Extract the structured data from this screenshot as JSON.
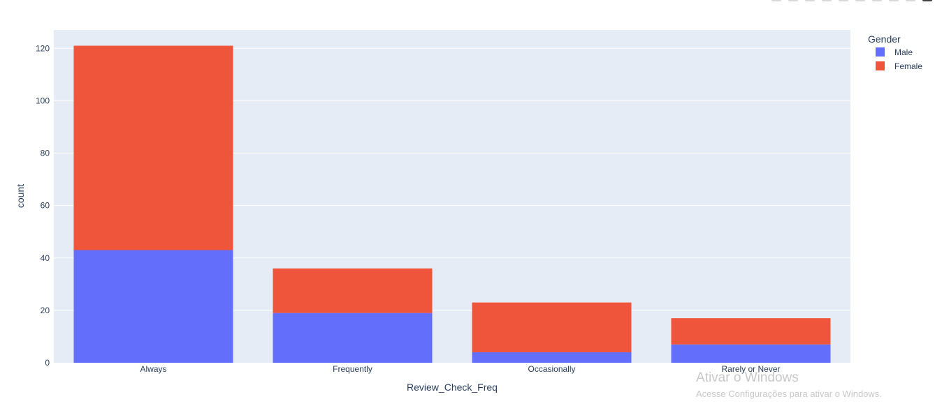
{
  "chart_data": {
    "type": "bar",
    "barmode": "stack",
    "categories": [
      "Always",
      "Frequently",
      "Occasionally",
      "Rarely or Never"
    ],
    "series": [
      {
        "name": "Male",
        "values": [
          43,
          19,
          4,
          7
        ],
        "color": "#636efa"
      },
      {
        "name": "Female",
        "values": [
          78,
          17,
          19,
          10
        ],
        "color": "#ef553b"
      }
    ],
    "xlabel": "Review_Check_Freq",
    "ylabel": "count",
    "ylim": [
      0,
      127
    ],
    "yticks": [
      0,
      20,
      40,
      60,
      80,
      100,
      120
    ],
    "grid": true,
    "plot_background": "#e5ecf6",
    "legend": {
      "title": "Gender",
      "placement": "top-right"
    }
  },
  "watermark": {
    "title": "Ativar o Windows",
    "subtitle": "Acesse Configurações para ativar o Windows."
  }
}
